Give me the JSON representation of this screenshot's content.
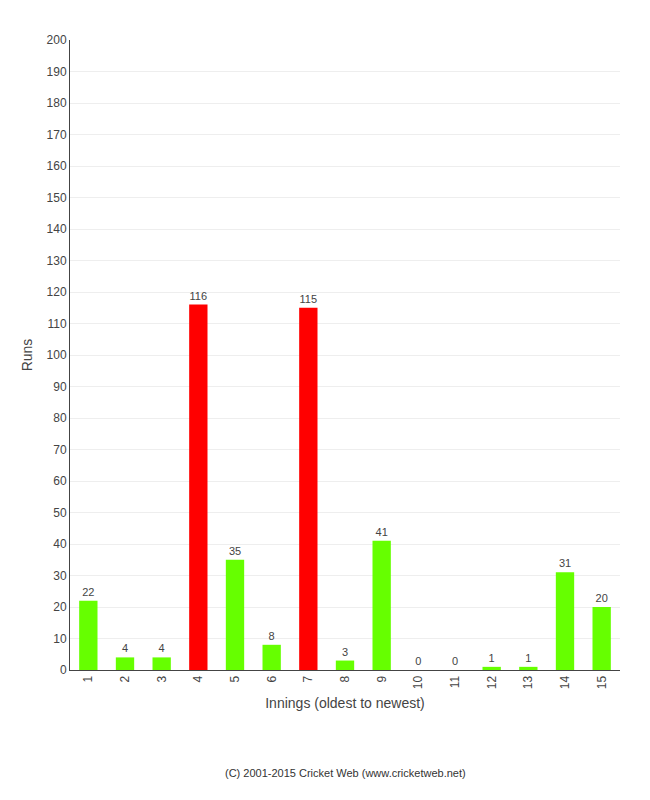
{
  "chart_data": {
    "type": "bar",
    "categories": [
      "1",
      "2",
      "3",
      "4",
      "5",
      "6",
      "7",
      "8",
      "9",
      "10",
      "11",
      "12",
      "13",
      "14",
      "15"
    ],
    "values": [
      22,
      4,
      4,
      116,
      35,
      8,
      115,
      3,
      41,
      0,
      0,
      1,
      1,
      31,
      20
    ],
    "colors": [
      "#66ff00",
      "#66ff00",
      "#66ff00",
      "#ff0000",
      "#66ff00",
      "#66ff00",
      "#ff0000",
      "#66ff00",
      "#66ff00",
      "#66ff00",
      "#66ff00",
      "#66ff00",
      "#66ff00",
      "#66ff00",
      "#66ff00"
    ],
    "xlabel": "Innings (oldest to newest)",
    "ylabel": "Runs",
    "ylim": [
      0,
      200
    ],
    "yticks": [
      0,
      10,
      20,
      30,
      40,
      50,
      60,
      70,
      80,
      90,
      100,
      110,
      120,
      130,
      140,
      150,
      160,
      170,
      180,
      190,
      200
    ],
    "grid": true,
    "data_labels": true,
    "annotations": [
      "(C) 2001-2015 Cricket Web (www.cricketweb.net)"
    ]
  }
}
